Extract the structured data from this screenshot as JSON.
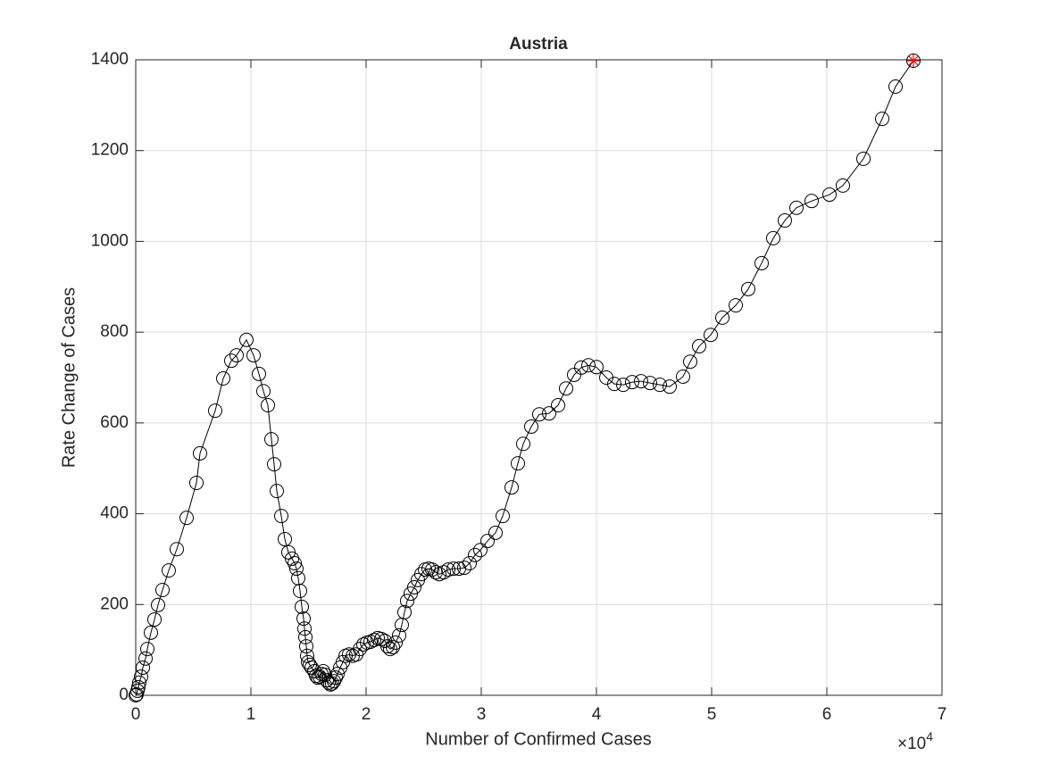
{
  "chart_data": {
    "type": "line",
    "title": "Austria",
    "xlabel": "Number of Confirmed Cases",
    "ylabel": "Rate Change of Cases",
    "x_multiplier": {
      "base": "×10",
      "exponent": "4"
    },
    "xlim": [
      0,
      70000
    ],
    "ylim": [
      0,
      1400
    ],
    "xticks": [
      0,
      {
        "value": 10000,
        "label": "1"
      },
      {
        "value": 20000,
        "label": "2"
      },
      {
        "value": 30000,
        "label": "3"
      },
      {
        "value": 40000,
        "label": "4"
      },
      {
        "value": 50000,
        "label": "5"
      },
      {
        "value": 60000,
        "label": "6"
      },
      {
        "value": 70000,
        "label": "7"
      }
    ],
    "yticks": [
      0,
      200,
      400,
      600,
      800,
      1000,
      1200,
      1400
    ],
    "grid": true,
    "highlight_color": "#ff0000",
    "series": [
      {
        "color": "#000000",
        "x": [
          0,
          78,
          155,
          233,
          310,
          465,
          620,
          853,
          1008,
          1318,
          1628,
          1938,
          2326,
          2868,
          3566,
          4419,
          5271,
          5581,
          6899,
          7597,
          8295,
          8760,
          9612,
          10233,
          10698,
          11085,
          11473,
          11783,
          12016,
          12248,
          12636,
          12946,
          13256,
          13566,
          13798,
          13953,
          14109,
          14264,
          14419,
          14574,
          14651,
          14729,
          14806,
          14884,
          14961,
          15116,
          15271,
          15504,
          15659,
          15814,
          15969,
          16124,
          16279,
          16434,
          16589,
          16744,
          16899,
          17054,
          17209,
          17364,
          17519,
          17752,
          17984,
          18217,
          18527,
          18837,
          19147,
          19457,
          19767,
          20078,
          20388,
          20698,
          21008,
          21318,
          21628,
          21860,
          22093,
          22326,
          22558,
          22868,
          23101,
          23333,
          23566,
          23876,
          24186,
          24496,
          24806,
          25116,
          25426,
          25736,
          26047,
          26357,
          26744,
          27132,
          27597,
          28062,
          28527,
          28992,
          29457,
          29922,
          30543,
          31240,
          31860,
          32636,
          33178,
          33643,
          34341,
          35039,
          35891,
          36667,
          37364,
          38062,
          38682,
          39302,
          40000,
          40853,
          41550,
          42326,
          43101,
          43876,
          44651,
          45504,
          46357,
          47519,
          48140,
          48915,
          49922,
          50930,
          52093,
          53178,
          54341,
          55349,
          56357,
          57364,
          58682,
          60233,
          61395,
          63178,
          64806,
          65969,
          67519
        ],
        "values": [
          0,
          2,
          10,
          18,
          28,
          41,
          61,
          81,
          102,
          138,
          167,
          199,
          232,
          275,
          322,
          391,
          468,
          533,
          627,
          698,
          737,
          749,
          783,
          749,
          708,
          670,
          639,
          564,
          509,
          450,
          395,
          344,
          315,
          301,
          291,
          279,
          258,
          230,
          195,
          169,
          147,
          128,
          108,
          87,
          73,
          67,
          61,
          53,
          43,
          39,
          41,
          47,
          53,
          45,
          33,
          28,
          24,
          26,
          31,
          39,
          47,
          61,
          73,
          87,
          90,
          87,
          90,
          102,
          112,
          116,
          118,
          122,
          126,
          124,
          120,
          108,
          102,
          106,
          116,
          132,
          155,
          183,
          208,
          224,
          238,
          254,
          267,
          277,
          279,
          277,
          271,
          267,
          271,
          277,
          279,
          279,
          281,
          291,
          309,
          320,
          340,
          358,
          395,
          458,
          511,
          554,
          592,
          619,
          621,
          639,
          676,
          706,
          722,
          727,
          723,
          700,
          686,
          684,
          690,
          692,
          688,
          684,
          680,
          702,
          735,
          769,
          794,
          832,
          859,
          895,
          952,
          1007,
          1046,
          1074,
          1089,
          1103,
          1123,
          1182,
          1270,
          1341,
          1398
        ]
      }
    ]
  }
}
